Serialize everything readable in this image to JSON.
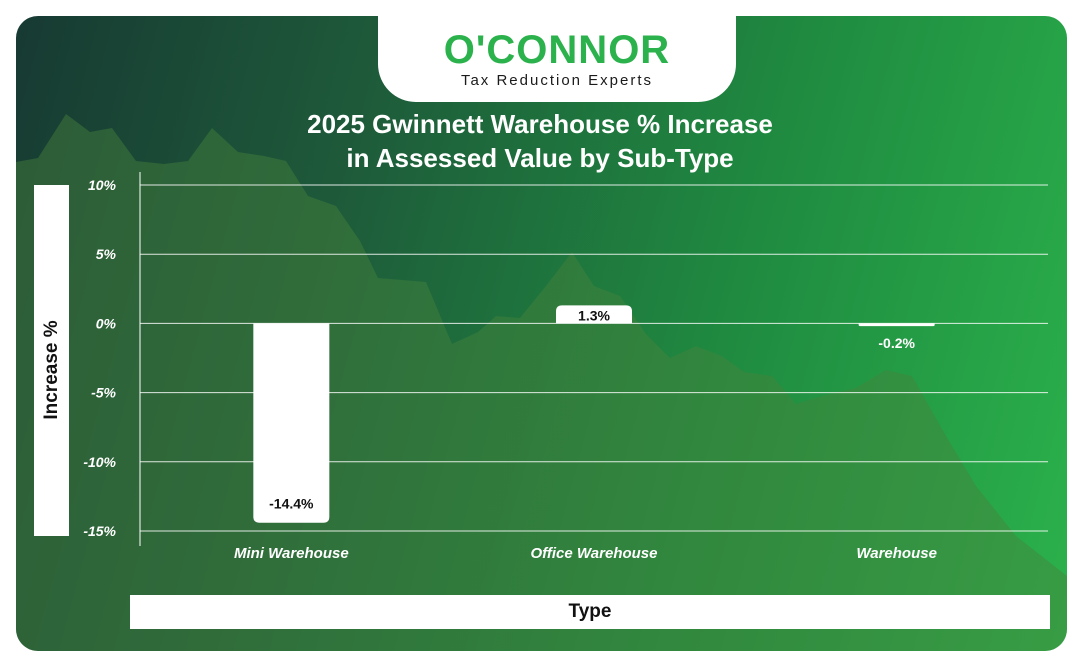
{
  "brand": {
    "name": "O'CONNOR",
    "tagline": "Tax Reduction Experts",
    "color": "#2bb24c"
  },
  "chart_data": {
    "type": "bar",
    "title_line1": "2025 Gwinnett Warehouse % Increase",
    "title_line2": "in Assessed Value by Sub-Type",
    "xlabel": "Type",
    "ylabel": "Increase %",
    "categories": [
      "Mini Warehouse",
      "Office Warehouse",
      "Warehouse"
    ],
    "values": [
      -14.4,
      1.3,
      -0.2
    ],
    "data_labels": [
      "-14.4%",
      "1.3%",
      "-0.2%"
    ],
    "ylim": [
      -15,
      10
    ],
    "yticks": [
      10,
      5,
      0,
      -5,
      -10,
      -15
    ],
    "ytick_labels": [
      "10%",
      "5%",
      "0%",
      "-5%",
      "-10%",
      "-15%"
    ],
    "grid": true,
    "bar_color": "#ffffff"
  }
}
